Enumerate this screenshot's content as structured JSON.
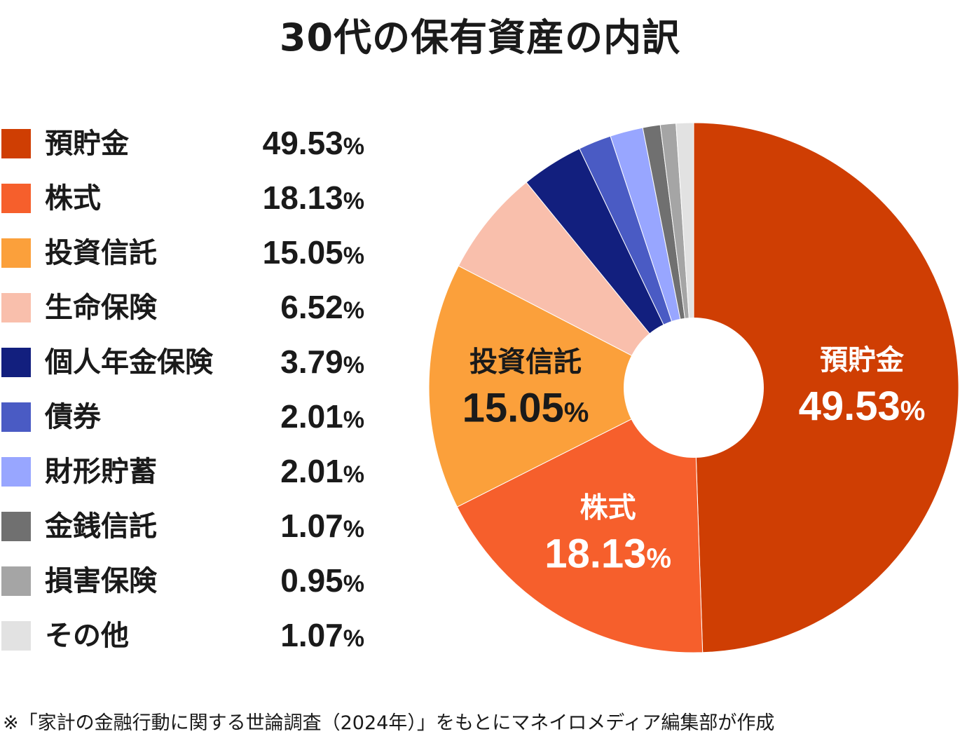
{
  "title": "30代の保有資産の内訳",
  "footnote": "※「家計の金融行動に関する世論調査（2024年）」をもとにマネイロメディア編集部が作成",
  "chart_data": {
    "type": "pie",
    "donut": true,
    "title": "30代の保有資産の内訳",
    "unit": "%",
    "legend_position": "left",
    "categories": [
      "預貯金",
      "株式",
      "投資信託",
      "生命保険",
      "個人年金保険",
      "債券",
      "財形貯蓄",
      "金銭信託",
      "損害保険",
      "その他"
    ],
    "values": [
      49.53,
      18.13,
      15.05,
      6.52,
      3.79,
      2.01,
      2.01,
      1.07,
      0.95,
      1.07
    ],
    "value_labels": [
      "49.53",
      "18.13",
      "15.05",
      "6.52",
      "3.79",
      "2.01",
      "2.01",
      "1.07",
      "0.95",
      "1.07"
    ],
    "colors": [
      "#cf3e03",
      "#f65f2c",
      "#fba03b",
      "#f9bfac",
      "#121f7e",
      "#4a5bc4",
      "#98a6ff",
      "#707070",
      "#a5a5a5",
      "#e2e2e2"
    ],
    "slice_labels_on_chart": [
      0,
      1,
      2
    ],
    "on_chart_label_colors": [
      "#ffffff",
      "#ffffff",
      "#1a1a1a"
    ]
  }
}
